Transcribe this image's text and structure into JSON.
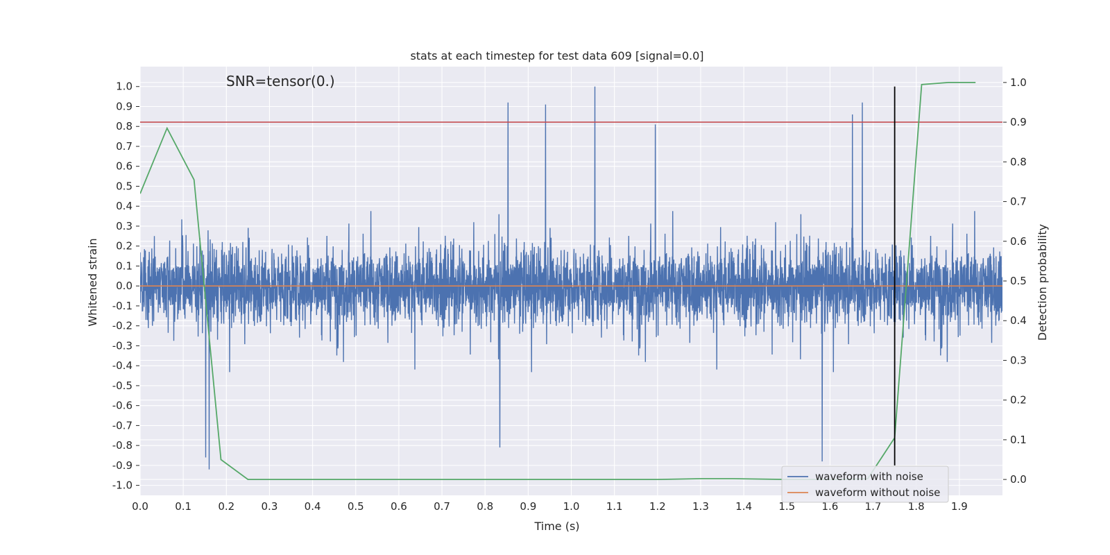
{
  "chart_data": {
    "type": "line",
    "title": "stats at each timestep for test data 609 [signal=0.0]",
    "xlabel": "Time (s)",
    "ylabel": "Whitened strain",
    "y2label": "Detection probability",
    "annotation": "SNR=tensor(0.)",
    "xlim": [
      0.0,
      2.0
    ],
    "ylim": [
      -1.05,
      1.1
    ],
    "y2lim": [
      -0.04,
      1.04
    ],
    "xticks": [
      "0.0",
      "0.1",
      "0.2",
      "0.3",
      "0.4",
      "0.5",
      "0.6",
      "0.7",
      "0.8",
      "0.9",
      "1.0",
      "1.1",
      "1.2",
      "1.3",
      "1.4",
      "1.5",
      "1.6",
      "1.7",
      "1.8",
      "1.9"
    ],
    "xtick_values": [
      0.0,
      0.1,
      0.2,
      0.3,
      0.4,
      0.5,
      0.6,
      0.7,
      0.8,
      0.9,
      1.0,
      1.1,
      1.2,
      1.3,
      1.4,
      1.5,
      1.6,
      1.7,
      1.8,
      1.9
    ],
    "yticks": [
      "1.0",
      "0.9",
      "0.8",
      "0.7",
      "0.6",
      "0.5",
      "0.4",
      "0.3",
      "0.2",
      "0.1",
      "0.0",
      "-0.1",
      "-0.2",
      "-0.3",
      "-0.4",
      "-0.5",
      "-0.6",
      "-0.7",
      "-0.8",
      "-0.9",
      "-1.0"
    ],
    "ytick_values": [
      1.0,
      0.9,
      0.8,
      0.7,
      0.6,
      0.5,
      0.4,
      0.3,
      0.2,
      0.1,
      0.0,
      -0.1,
      -0.2,
      -0.3,
      -0.4,
      -0.5,
      -0.6,
      -0.7,
      -0.8,
      -0.9,
      -1.0
    ],
    "y2ticks": [
      "1.0",
      "0.9",
      "0.8",
      "0.7",
      "0.6",
      "0.5",
      "0.4",
      "0.3",
      "0.2",
      "0.1",
      "0.0"
    ],
    "y2tick_values": [
      1.0,
      0.9,
      0.8,
      0.7,
      0.6,
      0.5,
      0.4,
      0.3,
      0.2,
      0.1,
      0.0
    ],
    "grid": true,
    "legend_placement": "bottom-right",
    "series": [
      {
        "name": "waveform with noise",
        "axis": "left",
        "color": "#4c72b0",
        "kind": "noise",
        "x_range": [
          0.0,
          2.0
        ],
        "amplitude_range": [
          -0.92,
          1.0
        ],
        "notable_peaks": [
          {
            "x": 1.055,
            "y": 1.0
          },
          {
            "x": 0.853,
            "y": 0.92
          },
          {
            "x": 1.675,
            "y": 0.92
          },
          {
            "x": 0.94,
            "y": 0.91
          },
          {
            "x": 1.652,
            "y": 0.86
          },
          {
            "x": 1.195,
            "y": 0.81
          },
          {
            "x": 0.16,
            "y": -0.92
          },
          {
            "x": 0.152,
            "y": -0.86
          },
          {
            "x": 1.582,
            "y": -0.88
          },
          {
            "x": 0.834,
            "y": -0.81
          }
        ]
      },
      {
        "name": "waveform without noise",
        "axis": "left",
        "color": "#dd8452",
        "x": [
          0.0,
          2.0
        ],
        "y": [
          0.0,
          0.0
        ]
      },
      {
        "axis": "right",
        "color": "#55a868",
        "x": [
          0.0,
          0.0625,
          0.125,
          0.1875,
          0.25,
          0.3125,
          1.0,
          1.2,
          1.3,
          1.375,
          1.5,
          1.625,
          1.6875,
          1.75,
          1.8125,
          1.875,
          1.9375
        ],
        "y": [
          0.72,
          0.885,
          0.755,
          0.05,
          0.0,
          0.0,
          0.0,
          0.0,
          0.002,
          0.002,
          0.0,
          0.0,
          0.002,
          0.105,
          0.995,
          1.0,
          1.0
        ]
      }
    ],
    "hlines": [
      {
        "axis": "right",
        "y": 0.9,
        "color": "#c44e52"
      }
    ],
    "vlines": [
      {
        "x": 1.75,
        "ymin": -0.9,
        "ymax": 1.0,
        "color": "#000000"
      }
    ]
  }
}
